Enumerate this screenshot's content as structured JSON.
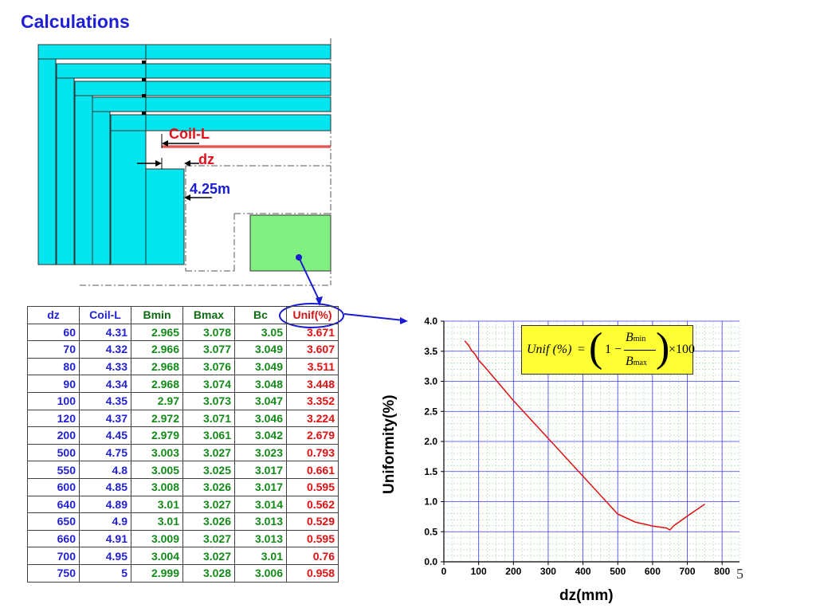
{
  "title": "Calculations",
  "diagram": {
    "label_coil": "Coil-L",
    "label_dz": "dz",
    "label_dist": "4.25m",
    "color_coil": "#00e5ee",
    "color_target": "#80f080",
    "color_coil_line": "#cc1010"
  },
  "table": {
    "headers": [
      "dz",
      "Coil-L",
      "Bmin",
      "Bmax",
      "Bc",
      "Unif(%)"
    ],
    "rows": [
      [
        "60",
        "4.31",
        "2.965",
        "3.078",
        "3.05",
        "3.671"
      ],
      [
        "70",
        "4.32",
        "2.966",
        "3.077",
        "3.049",
        "3.607"
      ],
      [
        "80",
        "4.33",
        "2.968",
        "3.076",
        "3.049",
        "3.511"
      ],
      [
        "90",
        "4.34",
        "2.968",
        "3.074",
        "3.048",
        "3.448"
      ],
      [
        "100",
        "4.35",
        "2.97",
        "3.073",
        "3.047",
        "3.352"
      ],
      [
        "120",
        "4.37",
        "2.972",
        "3.071",
        "3.046",
        "3.224"
      ],
      [
        "200",
        "4.45",
        "2.979",
        "3.061",
        "3.042",
        "2.679"
      ],
      [
        "500",
        "4.75",
        "3.003",
        "3.027",
        "3.023",
        "0.793"
      ],
      [
        "550",
        "4.8",
        "3.005",
        "3.025",
        "3.017",
        "0.661"
      ],
      [
        "600",
        "4.85",
        "3.008",
        "3.026",
        "3.017",
        "0.595"
      ],
      [
        "640",
        "4.89",
        "3.01",
        "3.027",
        "3.014",
        "0.562"
      ],
      [
        "650",
        "4.9",
        "3.01",
        "3.026",
        "3.013",
        "0.529"
      ],
      [
        "660",
        "4.91",
        "3.009",
        "3.027",
        "3.013",
        "0.595"
      ],
      [
        "700",
        "4.95",
        "3.004",
        "3.027",
        "3.01",
        "0.76"
      ],
      [
        "750",
        "5",
        "2.999",
        "3.028",
        "3.006",
        "0.958"
      ]
    ]
  },
  "formula": {
    "lhs": "Unif (%)",
    "eq": "=",
    "one": "1",
    "minus": "−",
    "num": "B",
    "num_sub": "min",
    "den": "B",
    "den_sub": "max",
    "times": "×100"
  },
  "page_number": "5",
  "chart_data": {
    "type": "line",
    "xlabel": "dz(mm)",
    "ylabel": "Uniformity(%)",
    "xlim": [
      0,
      850
    ],
    "ylim": [
      0.0,
      4.0
    ],
    "xticks": [
      "0",
      "100",
      "200",
      "300",
      "400",
      "500",
      "600",
      "700",
      "800"
    ],
    "yticks": [
      "0.0",
      "0.5",
      "1.0",
      "1.5",
      "2.0",
      "2.5",
      "3.0",
      "3.5",
      "4.0"
    ],
    "grid": true,
    "series": [
      {
        "color": "#e01010",
        "x": [
          60,
          70,
          80,
          90,
          100,
          120,
          200,
          500,
          550,
          600,
          640,
          650,
          660,
          700,
          750
        ],
        "y": [
          3.671,
          3.607,
          3.511,
          3.448,
          3.352,
          3.224,
          2.679,
          0.793,
          0.661,
          0.595,
          0.562,
          0.529,
          0.595,
          0.76,
          0.958
        ]
      }
    ]
  }
}
